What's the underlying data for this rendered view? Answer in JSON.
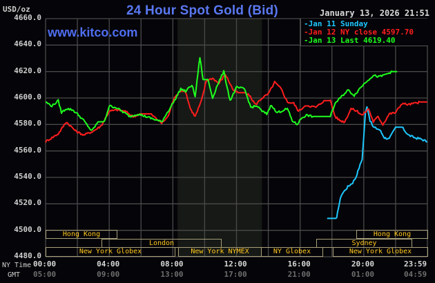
{
  "header": {
    "title": "24 Hour Spot Gold (Bid)",
    "timestamp": "January 13, 2026 21:51",
    "unit": "USD/oz",
    "watermark": "www.kitco.com"
  },
  "legend": {
    "items": [
      {
        "marker": "-",
        "label": "Jan 11 Sunday",
        "color": "#1ec8ff"
      },
      {
        "marker": "-",
        "label": "Jan 12 NY close 4597.70",
        "color": "#ff1e1e"
      },
      {
        "marker": "-",
        "label": "Jan 13 Last 4619.40",
        "color": "#1eff1e"
      }
    ]
  },
  "axes": {
    "y_labels": [
      "4660.0",
      "4640.0",
      "4620.0",
      "4600.0",
      "4580.0",
      "4560.0",
      "4540.0",
      "4520.0",
      "4500.0",
      "4480.0"
    ],
    "x_row1_label": "NY Time",
    "x_row2_label": "GMT",
    "x_ny": [
      "00:00",
      "04:00",
      "08:00",
      "12:00",
      "16:00",
      "20:00",
      "23:59"
    ],
    "x_gmt": [
      "05:00",
      "09:00",
      "13:00",
      "17:00",
      "21:00",
      "01:00",
      "04:59"
    ]
  },
  "sessions": {
    "row1": [
      {
        "label": "Hong Kong"
      },
      {
        "label": "Hong Kong"
      }
    ],
    "row2": [
      {
        "label": "London"
      },
      {
        "label": "Sydney"
      }
    ],
    "row3": [
      {
        "label": "New York Globex"
      },
      {
        "label": "New York NYMEX"
      },
      {
        "label": "NY Globex"
      },
      {
        "label": "New York Globex"
      }
    ]
  },
  "colors": {
    "background": "#050408",
    "grid": "#4a4a4a",
    "shaded_session": "#161915",
    "title": "#5a78f0",
    "jan11": "#1ec8ff",
    "jan12": "#ff1e1e",
    "jan13": "#1eff1e",
    "session_border": "#a8a07a",
    "session_text": "#ffc81e"
  },
  "chart_data": {
    "type": "line",
    "title": "24 Hour Spot Gold (Bid)",
    "xlabel": "NY Time / GMT",
    "ylabel": "USD/oz",
    "ylim": [
      4480,
      4660
    ],
    "xlim_hours": [
      0,
      24
    ],
    "grid": true,
    "legend_position": "top-right",
    "x_ticks": [
      "00:00",
      "04:00",
      "08:00",
      "12:00",
      "16:00",
      "20:00",
      "23:59"
    ],
    "series": [
      {
        "name": "Jan 11 Sunday",
        "color": "#1ec8ff",
        "x_hours": [
          17.7,
          18.3,
          18.4,
          18.6,
          19.0,
          19.3,
          19.5,
          19.9,
          20.1,
          20.2,
          20.4,
          20.6,
          21.0,
          21.3,
          21.6,
          22.0,
          22.4,
          22.8,
          23.2,
          23.6,
          23.99
        ],
        "values": [
          4509,
          4509,
          4517,
          4527,
          4533,
          4536,
          4540,
          4554,
          4588,
          4594,
          4583,
          4578,
          4576,
          4570,
          4569,
          4578,
          4578,
          4572,
          4570,
          4569,
          4567
        ]
      },
      {
        "name": "Jan 12 NY close 4597.70",
        "color": "#ff1e1e",
        "x_hours": [
          0,
          0.8,
          1.3,
          1.9,
          2.4,
          3.0,
          3.5,
          4.0,
          4.5,
          5.0,
          5.5,
          6.0,
          6.6,
          7.3,
          7.7,
          8.1,
          8.5,
          8.8,
          9.1,
          9.4,
          9.8,
          10.1,
          10.5,
          10.9,
          11.3,
          11.8,
          12.1,
          12.5,
          12.8,
          13.2,
          13.6,
          14.0,
          14.4,
          14.8,
          15.2,
          15.6,
          15.9,
          16.3,
          16.6,
          17.0,
          17.5,
          17.7,
          17.9,
          18.2,
          18.5,
          18.8,
          19.2,
          19.6,
          19.9,
          20.3,
          20.6,
          20.9,
          21.2,
          21.6,
          22.0,
          22.4,
          22.8,
          23.2,
          23.6,
          23.99
        ],
        "values": [
          4567,
          4573,
          4582,
          4575,
          4572,
          4575,
          4579,
          4590,
          4591,
          4590,
          4586,
          4588,
          4588,
          4581,
          4586,
          4601,
          4605,
          4605,
          4592,
          4586,
          4598,
          4613,
          4615,
          4611,
          4618,
          4606,
          4604,
          4604,
          4602,
          4595,
          4600,
          4603,
          4612,
          4607,
          4597,
          4596,
          4590,
          4594,
          4594,
          4593,
          4598,
          4598,
          4598,
          4586,
          4583,
          4582,
          4592,
          4590,
          4587,
          4592,
          4582,
          4586,
          4580,
          4588,
          4589,
          4596,
          4595,
          4596,
          4597,
          4597
        ]
      },
      {
        "name": "Jan 13 Last 4619.40",
        "color": "#1eff1e",
        "x_hours": [
          0,
          0.4,
          0.8,
          1.0,
          1.3,
          1.7,
          2.0,
          2.4,
          2.9,
          3.3,
          3.7,
          4.0,
          4.4,
          4.8,
          5.3,
          5.8,
          6.3,
          6.8,
          7.3,
          7.7,
          8.1,
          8.5,
          8.8,
          9.2,
          9.4,
          9.7,
          9.9,
          10.2,
          10.5,
          10.8,
          11.2,
          11.6,
          12.0,
          12.5,
          12.9,
          13.3,
          13.6,
          13.9,
          14.2,
          14.5,
          14.8,
          15.2,
          15.5,
          15.8,
          16.1,
          16.4,
          16.8,
          17.2,
          17.6,
          17.9,
          18.2,
          18.6,
          19.0,
          19.4,
          19.8,
          20.2,
          20.6,
          21.0,
          21.4,
          21.8,
          22.1
        ],
        "values": [
          4597,
          4594,
          4598,
          4589,
          4592,
          4591,
          4588,
          4583,
          4575,
          4582,
          4582,
          4594,
          4593,
          4590,
          4586,
          4588,
          4586,
          4584,
          4582,
          4590,
          4598,
          4607,
          4605,
          4610,
          4601,
          4631,
          4614,
          4614,
          4600,
          4610,
          4620,
          4598,
          4608,
          4607,
          4593,
          4594,
          4590,
          4588,
          4595,
          4589,
          4590,
          4592,
          4583,
          4580,
          4585,
          4587,
          4586,
          4586,
          4586,
          4586,
          4596,
          4601,
          4606,
          4602,
          4608,
          4613,
          4617,
          4616,
          4618,
          4620,
          4620
        ]
      }
    ],
    "shaded_region_hours": [
      8.3,
      13.6
    ],
    "sessions": [
      {
        "name": "Hong Kong",
        "row": 1,
        "start_hour": 0,
        "end_hour": 4.5
      },
      {
        "name": "London",
        "row": 2,
        "start_hour": 3.5,
        "end_hour": 11.5
      },
      {
        "name": "New York Globex",
        "row": 3,
        "start_hour": 0,
        "end_hour": 8.1
      },
      {
        "name": "New York NYMEX",
        "row": 3,
        "start_hour": 8.3,
        "end_hour": 13.6
      },
      {
        "name": "NY Globex",
        "row": 3,
        "start_hour": 13.6,
        "end_hour": 17.4
      },
      {
        "name": "Sydney",
        "row": 2,
        "start_hour": 17.0,
        "end_hour": 23.0
      },
      {
        "name": "Hong Kong",
        "row": 1,
        "start_hour": 19.5,
        "end_hour": 23.99
      },
      {
        "name": "New York Globex",
        "row": 3,
        "start_hour": 18.0,
        "end_hour": 23.99
      }
    ]
  }
}
